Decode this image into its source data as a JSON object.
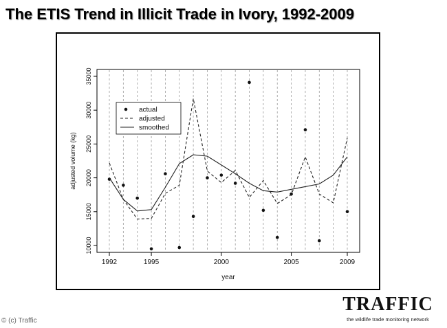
{
  "title": "The ETIS Trend in Illicit Trade in Ivory, 1992-2009",
  "copyright": "© (c) Traffic",
  "logo": {
    "word": "TRAFFIC",
    "tagline": "the wildlife trade monitoring network"
  },
  "chart_data": {
    "type": "line",
    "xlabel": "year",
    "ylabel": "adjusted volume (kg)",
    "xlim": [
      1992,
      2009
    ],
    "ylim": [
      10000,
      35000
    ],
    "xticks": [
      1992,
      1995,
      2000,
      2005,
      2009
    ],
    "yticks": [
      10000,
      15000,
      20000,
      25000,
      30000,
      35000
    ],
    "vertical_grid": "dashed line at each year",
    "legend_position": "top-left",
    "legend": [
      "actual",
      "adjusted",
      "smoothed"
    ],
    "x": [
      1992,
      1993,
      1994,
      1995,
      1996,
      1997,
      1998,
      1999,
      2000,
      2001,
      2002,
      2003,
      2004,
      2005,
      2006,
      2007,
      2008,
      2009
    ],
    "series": [
      {
        "name": "actual",
        "style": "points",
        "color": "#111111",
        "values": [
          19800,
          18900,
          17000,
          9500,
          20600,
          9700,
          14300,
          20000,
          20400,
          19200,
          34100,
          15200,
          11200,
          17600,
          27100,
          10700,
          null,
          15000
        ]
      },
      {
        "name": "adjusted",
        "style": "dashed",
        "color": "#222222",
        "values": [
          22200,
          16800,
          13900,
          14000,
          17700,
          18900,
          31700,
          21000,
          19300,
          21100,
          17100,
          19600,
          16200,
          17500,
          23100,
          17600,
          16300,
          25900
        ]
      },
      {
        "name": "smoothed",
        "style": "solid",
        "color": "#222222",
        "values": [
          20000,
          16800,
          15100,
          15300,
          18600,
          22100,
          23400,
          23200,
          21900,
          20600,
          19200,
          18100,
          17900,
          18300,
          18700,
          19100,
          20400,
          23100
        ]
      }
    ]
  }
}
